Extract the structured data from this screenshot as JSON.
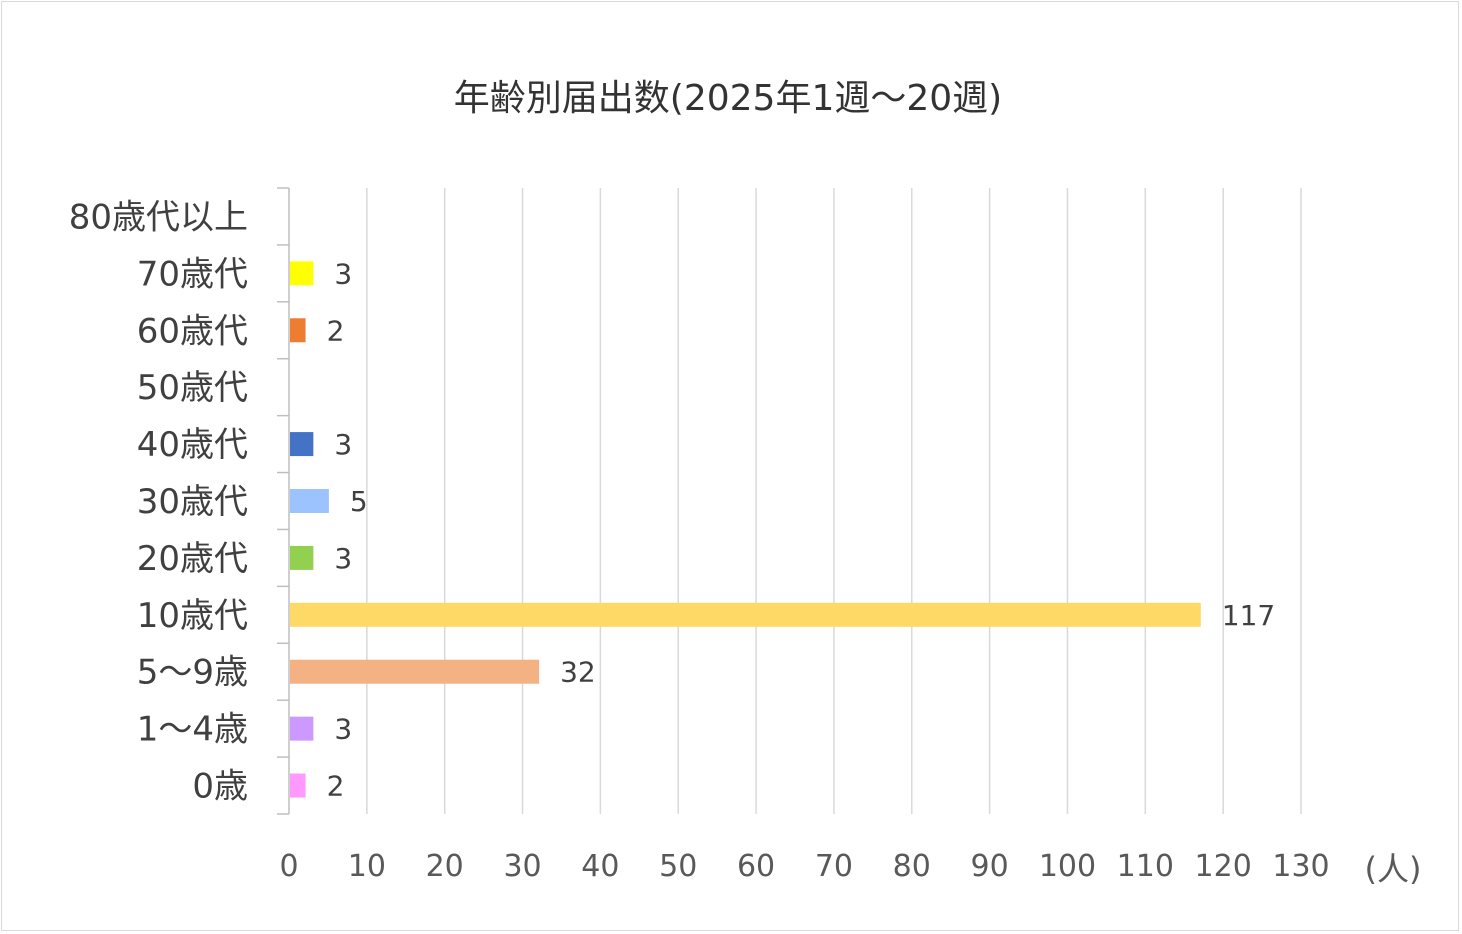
{
  "chart_data": {
    "type": "bar",
    "orientation": "horizontal",
    "title": "年齢別届出数(2025年1週〜20週)",
    "unit_label": "(人)",
    "categories": [
      "80歳代以上",
      "70歳代",
      "60歳代",
      "50歳代",
      "40歳代",
      "30歳代",
      "20歳代",
      "10歳代",
      "5〜9歳",
      "1〜4歳",
      "0歳"
    ],
    "values": [
      null,
      3,
      2,
      null,
      3,
      5,
      3,
      117,
      32,
      3,
      2
    ],
    "colors": [
      "#bfbfbf",
      "#ffff00",
      "#ed7d31",
      "#bfbfbf",
      "#4472c4",
      "#9dc3ff",
      "#92d050",
      "#ffd966",
      "#f4b183",
      "#cc99ff",
      "#ff99ff"
    ],
    "xlim": [
      0,
      130
    ],
    "x_ticks": [
      "0",
      "10",
      "20",
      "30",
      "40",
      "50",
      "60",
      "70",
      "80",
      "90",
      "100",
      "110",
      "120",
      "130"
    ],
    "grid": true,
    "legend": "none"
  }
}
